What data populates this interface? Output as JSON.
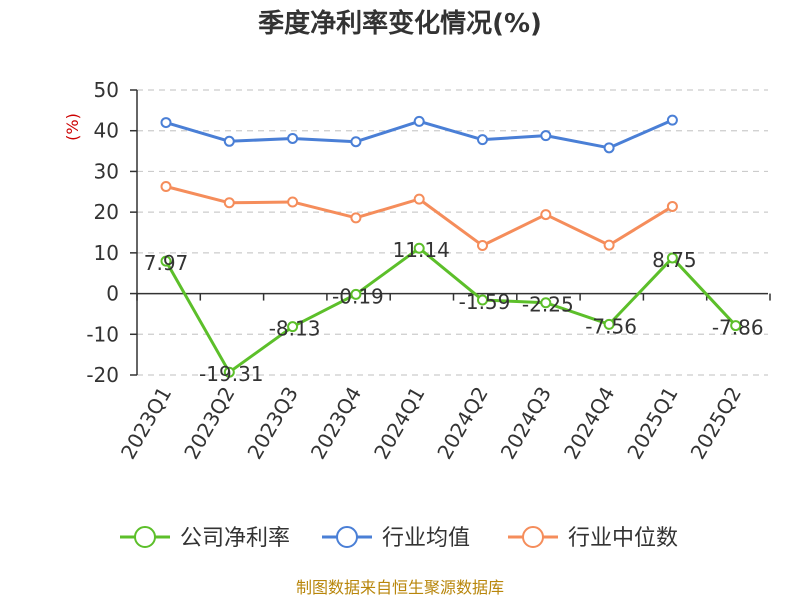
{
  "chart_data": {
    "type": "line",
    "title": "季度净利率变化情况(%)",
    "ylabel": "(%)",
    "ylim": [
      -20,
      50
    ],
    "yticks": [
      -20,
      -10,
      0,
      10,
      20,
      30,
      40,
      50
    ],
    "grid": true,
    "legend_position": "bottom",
    "categories": [
      "2023Q1",
      "2023Q2",
      "2023Q3",
      "2023Q4",
      "2024Q1",
      "2024Q2",
      "2024Q3",
      "2024Q4",
      "2025Q1",
      "2025Q2"
    ],
    "series": [
      {
        "name": "公司净利率",
        "color": "#5cbf2a",
        "values": [
          7.97,
          -19.31,
          -8.13,
          -0.19,
          11.14,
          -1.59,
          -2.25,
          -7.56,
          8.75,
          -7.86
        ],
        "show_labels": true,
        "labels": [
          "7.97",
          "-19.31",
          "-8.13",
          "-0.19",
          "11.14",
          "-1.59",
          "-2.25",
          "-7.56",
          "8.75",
          "-7.86"
        ]
      },
      {
        "name": "行业均值",
        "color": "#4a7fd6",
        "values": [
          42.0,
          37.4,
          38.1,
          37.3,
          42.3,
          37.8,
          38.8,
          35.8,
          42.6,
          null
        ],
        "show_labels": false
      },
      {
        "name": "行业中位数",
        "color": "#f58d5b",
        "values": [
          26.3,
          22.3,
          22.5,
          18.6,
          23.2,
          11.8,
          19.4,
          11.9,
          21.4,
          null
        ],
        "show_labels": false
      }
    ]
  },
  "source": "制图数据来自恒生聚源数据库"
}
